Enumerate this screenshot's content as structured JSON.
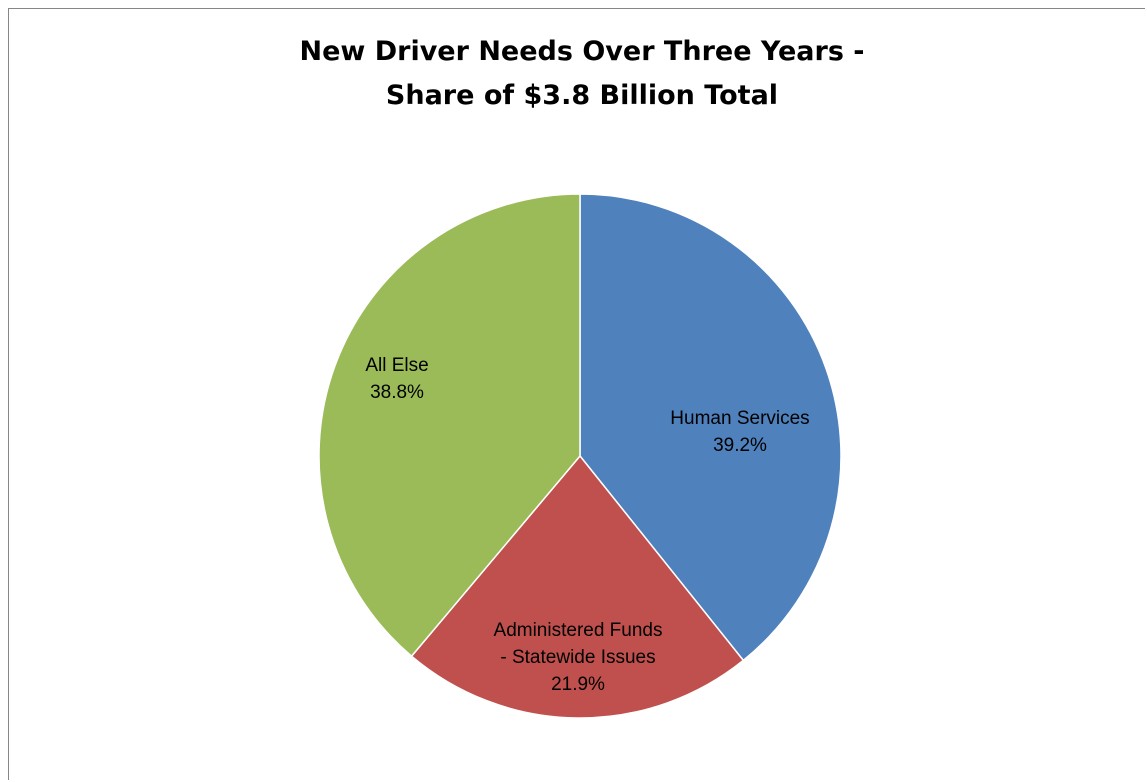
{
  "chart_data": {
    "type": "pie",
    "title_lines": [
      "New Driver Needs Over Three Years -",
      "Share of $3.8 Billion Total"
    ],
    "slices": [
      {
        "label_lines": [
          "Human Services"
        ],
        "value_label": "39.2%",
        "value": 39.2,
        "color": "#4f81bd"
      },
      {
        "label_lines": [
          "Administered Funds",
          "- Statewide Issues"
        ],
        "value_label": "21.9%",
        "value": 21.9,
        "color": "#c0504d"
      },
      {
        "label_lines": [
          "All Else"
        ],
        "value_label": "38.8%",
        "value": 38.8,
        "color": "#9bbb59"
      }
    ],
    "start": "top",
    "direction": "clockwise",
    "legend": "none"
  }
}
